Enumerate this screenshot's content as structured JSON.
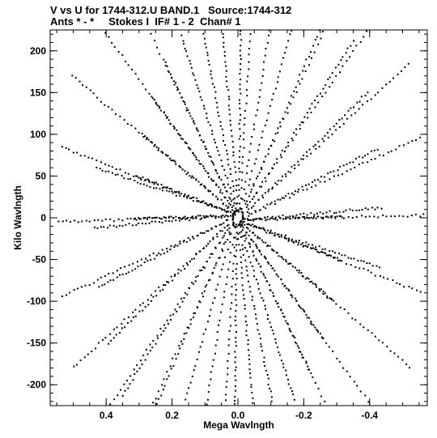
{
  "titles": {
    "line1": "V vs U for 1744-312.U BAND.1   Source:1744-312",
    "line2": "Ants * - *     Stokes I  IF# 1 - 2  Chan# 1"
  },
  "chart_data": {
    "type": "scatter",
    "xlabel": "Mega Wavlngth",
    "ylabel": "Kilo Wavlngth",
    "xlim": [
      0.57,
      -0.575
    ],
    "ylim": [
      -225,
      225
    ],
    "x_ticks": [
      0.4,
      0.2,
      0.0,
      -0.2,
      -0.4
    ],
    "x_tick_labels": [
      "0.4",
      "0.2",
      "0.0",
      "-0.2",
      "-0.4"
    ],
    "y_ticks": [
      200,
      150,
      100,
      50,
      0,
      -50,
      -100,
      -150,
      -200
    ],
    "y_tick_labels": [
      "200",
      "150",
      "100",
      "50",
      "0",
      "-50",
      "-100",
      "-150",
      "-200"
    ],
    "x_minor_step": 0.05,
    "y_minor_step": 10,
    "grid": false,
    "legend": "none",
    "marker_color": "#000000",
    "arms": [
      {
        "u0": 0.005,
        "v0": 8,
        "u1": 0.22,
        "v1": 185
      },
      {
        "u0": -0.005,
        "v0": -8,
        "u1": -0.22,
        "v1": -185
      },
      {
        "u0": 0.015,
        "v0": -5,
        "u1": 0.35,
        "v1": -212
      },
      {
        "u0": -0.015,
        "v0": 5,
        "u1": -0.35,
        "v1": 212
      },
      {
        "u0": 0.015,
        "v0": 2,
        "u1": 0.545,
        "v1": -5
      },
      {
        "u0": -0.015,
        "v0": -2,
        "u1": -0.565,
        "v1": 3
      }
    ],
    "samples_per_arm": 40,
    "tracks_per_point": 9,
    "track_span_deg": 46
  }
}
